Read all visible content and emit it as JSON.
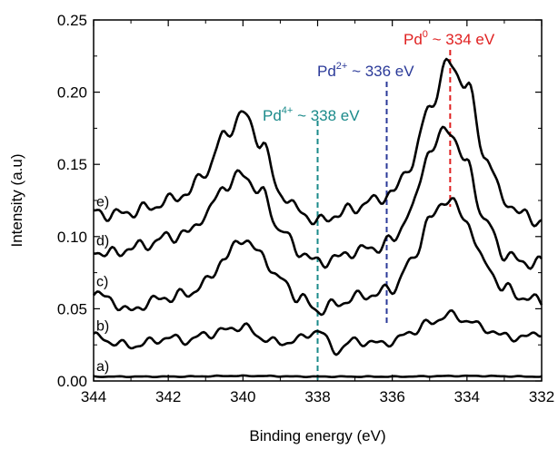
{
  "chart_data": {
    "type": "line",
    "title": "",
    "xlabel": "Binding energy (eV)",
    "ylabel": "Intensity (a.u)",
    "xlim": [
      344,
      332
    ],
    "x_reversed": true,
    "ylim": [
      0.0,
      0.25
    ],
    "x_ticks": [
      "344",
      "342",
      "340",
      "338",
      "336",
      "334",
      "332"
    ],
    "y_ticks": [
      "0.00",
      "0.05",
      "0.10",
      "0.15",
      "0.20",
      "0.25"
    ],
    "grid": false,
    "series_color": "#000000",
    "series": [
      {
        "name": "a)",
        "x": [
          344.0,
          342.0,
          340.0,
          338.0,
          336.0,
          334.0,
          332.0
        ],
        "values": [
          0.003,
          0.003,
          0.0035,
          0.003,
          0.003,
          0.0035,
          0.003
        ]
      },
      {
        "name": "b)",
        "x": [
          344.0,
          343.5,
          343.0,
          342.5,
          342.0,
          341.5,
          341.0,
          340.5,
          340.0,
          339.5,
          339.0,
          338.5,
          338.0,
          337.5,
          337.0,
          336.5,
          336.0,
          335.5,
          335.0,
          334.5,
          334.0,
          333.5,
          333.0,
          332.5,
          332.0
        ],
        "values": [
          0.031,
          0.027,
          0.024,
          0.027,
          0.03,
          0.028,
          0.032,
          0.035,
          0.038,
          0.03,
          0.026,
          0.029,
          0.035,
          0.021,
          0.028,
          0.026,
          0.027,
          0.034,
          0.04,
          0.046,
          0.042,
          0.036,
          0.031,
          0.03,
          0.034
        ]
      },
      {
        "name": "c)",
        "x": [
          344.0,
          343.5,
          343.0,
          342.5,
          342.0,
          341.5,
          341.0,
          340.5,
          340.0,
          339.5,
          339.0,
          338.5,
          338.0,
          337.5,
          337.0,
          336.5,
          336.0,
          335.5,
          335.0,
          334.5,
          334.0,
          333.5,
          333.0,
          332.5,
          332.0
        ],
        "values": [
          0.062,
          0.055,
          0.048,
          0.055,
          0.058,
          0.06,
          0.068,
          0.085,
          0.099,
          0.087,
          0.07,
          0.058,
          0.049,
          0.053,
          0.058,
          0.06,
          0.064,
          0.082,
          0.112,
          0.127,
          0.11,
          0.08,
          0.064,
          0.058,
          0.055
        ]
      },
      {
        "name": "d)",
        "x": [
          344.0,
          343.5,
          343.0,
          342.5,
          342.0,
          341.5,
          341.0,
          340.5,
          340.0,
          339.5,
          339.0,
          338.5,
          338.0,
          337.5,
          337.0,
          336.5,
          336.0,
          335.5,
          335.0,
          334.5,
          334.0,
          333.5,
          333.0,
          332.5,
          332.0
        ],
        "values": [
          0.09,
          0.088,
          0.092,
          0.095,
          0.1,
          0.102,
          0.115,
          0.135,
          0.143,
          0.13,
          0.105,
          0.09,
          0.082,
          0.085,
          0.09,
          0.092,
          0.097,
          0.118,
          0.16,
          0.175,
          0.15,
          0.11,
          0.088,
          0.082,
          0.082
        ]
      },
      {
        "name": "e)",
        "x": [
          344.0,
          343.5,
          343.0,
          342.5,
          342.0,
          341.5,
          341.0,
          340.5,
          340.0,
          339.5,
          339.0,
          338.5,
          338.0,
          337.5,
          337.0,
          336.5,
          336.0,
          335.5,
          335.0,
          334.5,
          334.0,
          333.5,
          333.0,
          332.5,
          332.0
        ],
        "values": [
          0.117,
          0.115,
          0.117,
          0.12,
          0.125,
          0.13,
          0.145,
          0.17,
          0.185,
          0.165,
          0.13,
          0.118,
          0.11,
          0.115,
          0.12,
          0.125,
          0.13,
          0.15,
          0.19,
          0.22,
          0.205,
          0.155,
          0.125,
          0.115,
          0.11
        ]
      }
    ],
    "reference_lines": [
      {
        "x": 338,
        "prefix": "Pd",
        "superscript": "4+",
        "suffix": " ~ 338 eV",
        "color": "#1a8a8a"
      },
      {
        "x": 336.15,
        "prefix": "Pd",
        "superscript": "2+",
        "suffix": " ~ 336 eV",
        "color": "#2b3a99"
      },
      {
        "x": 334.45,
        "prefix": "Pd",
        "superscript": "0",
        "suffix": " ~ 334 eV",
        "color": "#e02020"
      }
    ]
  }
}
